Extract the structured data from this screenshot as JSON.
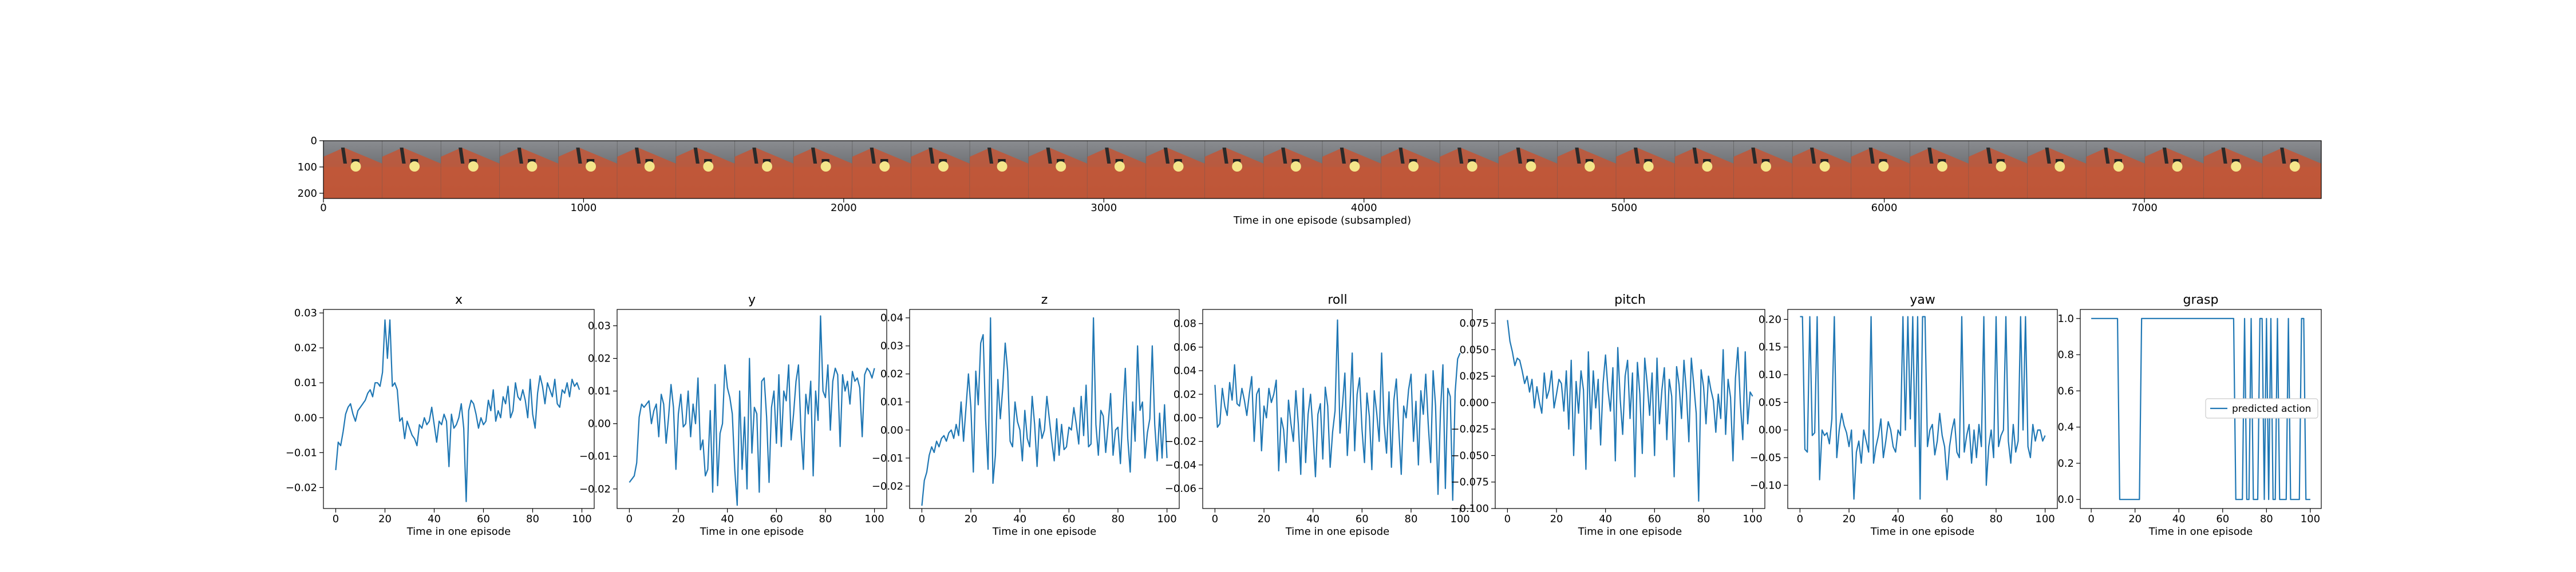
{
  "chart_data": [
    {
      "type": "image",
      "xlabel": "Time in one episode (subsampled)",
      "x_ticks": [
        0,
        1000,
        2000,
        3000,
        4000,
        5000,
        6000,
        7000
      ],
      "y_ticks": [
        0,
        100,
        200
      ],
      "xlim": [
        0,
        7680
      ],
      "ylim": [
        0,
        220
      ],
      "frame_count": 34
    },
    {
      "type": "line",
      "title": "x",
      "xlabel": "Time in one episode",
      "x_ticks": [
        0,
        20,
        40,
        60,
        80,
        100
      ],
      "y_ticks": [
        -0.02,
        -0.01,
        0.0,
        0.01,
        0.02,
        0.03
      ],
      "ylim": [
        -0.026,
        0.031
      ],
      "values": [
        -0.015,
        -0.007,
        -0.008,
        -0.004,
        0.001,
        0.003,
        0.004,
        0.001,
        -0.001,
        0.002,
        0.003,
        0.004,
        0.005,
        0.007,
        0.008,
        0.006,
        0.01,
        0.01,
        0.009,
        0.013,
        0.028,
        0.017,
        0.028,
        0.009,
        0.01,
        0.008,
        -0.001,
        0.0,
        -0.006,
        -0.001,
        -0.003,
        -0.005,
        -0.006,
        -0.008,
        -0.002,
        -0.003,
        0.0,
        -0.002,
        -0.001,
        0.003,
        -0.002,
        -0.007,
        -0.001,
        -0.002,
        0.001,
        -0.001,
        -0.014,
        0.001,
        -0.003,
        -0.002,
        0.0,
        0.004,
        -0.003,
        -0.024,
        0.002,
        0.005,
        0.004,
        0.001,
        -0.003,
        0.0,
        -0.002,
        -0.001,
        0.005,
        0.002,
        0.008,
        -0.001,
        0.002,
        0.0,
        0.006,
        0.004,
        0.009,
        0.0,
        0.002,
        0.01,
        0.006,
        0.005,
        0.008,
        0.005,
        0.0,
        0.011,
        0.001,
        -0.003,
        0.007,
        0.012,
        0.009,
        0.004,
        0.01,
        0.008,
        0.006,
        0.011,
        0.004,
        0.003,
        0.008,
        0.007,
        0.01,
        0.006,
        0.011,
        0.009,
        0.01,
        0.008
      ]
    },
    {
      "type": "line",
      "title": "y",
      "xlabel": "Time in one episode",
      "x_ticks": [
        0,
        20,
        40,
        60,
        80,
        100
      ],
      "y_ticks": [
        -0.02,
        -0.01,
        0.0,
        0.01,
        0.02,
        0.03
      ],
      "ylim": [
        -0.026,
        0.035
      ],
      "values": [
        -0.018,
        -0.017,
        -0.016,
        -0.012,
        0.002,
        0.006,
        0.005,
        0.006,
        0.007,
        0.0,
        0.004,
        0.006,
        -0.004,
        0.009,
        0.006,
        -0.006,
        0.002,
        0.012,
        0.005,
        -0.014,
        0.003,
        0.009,
        -0.001,
        0.0,
        0.01,
        -0.004,
        0.006,
        0.0,
        0.014,
        -0.008,
        -0.005,
        -0.016,
        -0.014,
        0.004,
        -0.021,
        0.012,
        -0.019,
        -0.003,
        0.0,
        0.018,
        0.011,
        0.008,
        0.003,
        -0.014,
        -0.025,
        0.01,
        -0.014,
        0.002,
        -0.02,
        0.02,
        -0.009,
        0.005,
        0.003,
        -0.021,
        0.013,
        0.014,
        0.002,
        -0.018,
        0.005,
        0.01,
        -0.006,
        0.015,
        -0.007,
        0.01,
        0.007,
        0.018,
        -0.005,
        0.003,
        0.013,
        0.018,
        -0.002,
        -0.014,
        0.009,
        0.003,
        0.013,
        -0.016,
        0.01,
        0.001,
        0.033,
        0.01,
        0.008,
        0.018,
        -0.002,
        0.013,
        0.017,
        0.015,
        -0.007,
        0.015,
        0.01,
        0.013,
        0.006,
        0.016,
        0.013,
        0.014,
        0.011,
        -0.004,
        0.015,
        0.017,
        0.016,
        0.014,
        0.017
      ]
    },
    {
      "type": "line",
      "title": "z",
      "xlabel": "Time in one episode",
      "x_ticks": [
        0,
        20,
        40,
        60,
        80,
        100
      ],
      "y_ticks": [
        -0.02,
        -0.01,
        0.0,
        0.01,
        0.02,
        0.03,
        0.04
      ],
      "ylim": [
        -0.028,
        0.043
      ],
      "values": [
        -0.027,
        -0.018,
        -0.015,
        -0.009,
        -0.006,
        -0.008,
        -0.004,
        -0.006,
        -0.003,
        -0.002,
        -0.004,
        -0.001,
        0.0,
        -0.003,
        0.002,
        -0.002,
        0.01,
        -0.004,
        0.008,
        0.02,
        0.008,
        -0.015,
        0.021,
        0.009,
        0.031,
        0.034,
        0.004,
        -0.014,
        0.04,
        -0.019,
        -0.009,
        0.018,
        0.004,
        0.015,
        0.031,
        0.021,
        -0.004,
        -0.006,
        0.01,
        0.003,
        0.0,
        -0.011,
        0.007,
        -0.003,
        -0.006,
        0.012,
        0.002,
        -0.013,
        0.004,
        -0.003,
        0.0,
        0.012,
        0.004,
        -0.004,
        -0.011,
        0.004,
        -0.009,
        0.002,
        -0.007,
        -0.006,
        0.001,
        0.0,
        0.008,
        0.002,
        -0.005,
        0.012,
        -0.002,
        0.016,
        -0.006,
        -0.005,
        0.04,
        0.002,
        -0.009,
        0.007,
        0.005,
        -0.008,
        0.002,
        0.013,
        -0.009,
        0.0,
        0.001,
        -0.012,
        0.006,
        0.022,
        -0.003,
        -0.015,
        0.01,
        -0.004,
        0.03,
        0.007,
        0.01,
        -0.01,
        -0.001,
        0.004,
        0.03,
        0.002,
        -0.011,
        0.006,
        -0.01,
        0.009,
        -0.01
      ]
    },
    {
      "type": "line",
      "title": "roll",
      "xlabel": "Time in one episode",
      "x_ticks": [
        0,
        20,
        40,
        60,
        80,
        100
      ],
      "y_ticks": [
        -0.06,
        -0.04,
        -0.02,
        0.0,
        0.02,
        0.04,
        0.06,
        0.08
      ],
      "ylim": [
        -0.077,
        0.092
      ],
      "values": [
        0.028,
        -0.008,
        -0.005,
        0.025,
        0.01,
        0.002,
        0.03,
        0.015,
        0.045,
        0.012,
        0.01,
        0.025,
        0.015,
        0.002,
        0.02,
        0.035,
        -0.02,
        0.02,
        0.025,
        -0.028,
        0.01,
        0.0,
        0.025,
        0.013,
        0.02,
        0.032,
        -0.045,
        0.0,
        -0.01,
        -0.038,
        0.015,
        -0.005,
        -0.02,
        0.023,
        -0.005,
        -0.048,
        0.025,
        -0.038,
        0.003,
        0.02,
        -0.012,
        -0.05,
        0.003,
        0.012,
        -0.035,
        0.026,
        0.01,
        -0.042,
        -0.012,
        0.006,
        0.083,
        -0.013,
        0.01,
        0.038,
        -0.032,
        0.005,
        0.055,
        -0.028,
        0.02,
        0.034,
        -0.01,
        -0.038,
        0.021,
        0.001,
        -0.044,
        0.023,
        0.004,
        -0.02,
        0.055,
        -0.005,
        -0.03,
        0.022,
        -0.042,
        0.015,
        0.033,
        -0.01,
        -0.048,
        0.01,
        0.0,
        0.024,
        0.037,
        -0.02,
        0.014,
        -0.04,
        0.023,
        0.003,
        0.037,
        -0.005,
        -0.038,
        0.04,
        0.01,
        -0.065,
        0.005,
        0.045,
        -0.06,
        0.025,
        0.018,
        -0.07,
        0.022,
        0.05,
        0.055
      ]
    },
    {
      "type": "line",
      "title": "pitch",
      "xlabel": "Time in one episode",
      "x_ticks": [
        0,
        20,
        40,
        60,
        80,
        100
      ],
      "y_ticks": [
        -0.1,
        -0.075,
        -0.05,
        -0.025,
        0.0,
        0.025,
        0.05,
        0.075
      ],
      "ylim": [
        -0.1,
        0.088
      ],
      "values": [
        0.078,
        0.058,
        0.048,
        0.035,
        0.042,
        0.04,
        0.03,
        0.018,
        0.025,
        0.01,
        0.022,
        -0.005,
        0.015,
        0.001,
        -0.01,
        0.028,
        0.004,
        0.012,
        0.03,
        -0.005,
        0.008,
        0.022,
        0.018,
        -0.008,
        0.03,
        -0.025,
        0.04,
        -0.05,
        0.02,
        -0.01,
        0.03,
        0.012,
        -0.063,
        0.048,
        -0.025,
        0.03,
        -0.005,
        0.022,
        -0.04,
        0.018,
        0.045,
        0.012,
        -0.008,
        0.033,
        -0.055,
        0.052,
        0.003,
        -0.03,
        0.025,
        0.04,
        -0.015,
        0.028,
        -0.07,
        0.038,
        0.008,
        -0.048,
        0.042,
        0.018,
        -0.012,
        0.028,
        -0.05,
        0.042,
        -0.02,
        0.012,
        0.033,
        -0.035,
        0.022,
        0.006,
        -0.07,
        0.034,
        0.017,
        -0.015,
        0.04,
        0.01,
        -0.037,
        0.042,
        0.017,
        -0.01,
        -0.093,
        0.031,
        0.015,
        -0.02,
        0.025,
        0.012,
        0.002,
        -0.028,
        0.008,
        -0.015,
        0.05,
        -0.03,
        0.022,
        0.005,
        -0.055,
        0.023,
        0.052,
        0.0,
        -0.035,
        0.048,
        -0.02,
        0.01,
        0.006
      ]
    },
    {
      "type": "line",
      "title": "yaw",
      "xlabel": "Time in one episode",
      "x_ticks": [
        0,
        20,
        40,
        60,
        80,
        100
      ],
      "y_ticks": [
        -0.1,
        -0.05,
        0.0,
        0.05,
        0.1,
        0.15,
        0.2
      ],
      "ylim": [
        -0.142,
        0.218
      ],
      "values": [
        0.205,
        0.205,
        -0.035,
        -0.04,
        0.205,
        -0.01,
        -0.005,
        0.205,
        -0.09,
        0.0,
        -0.01,
        -0.005,
        -0.025,
        0.02,
        0.205,
        -0.05,
        0.0,
        0.03,
        0.008,
        -0.005,
        -0.03,
        0.0,
        -0.125,
        -0.04,
        -0.02,
        -0.06,
        0.0,
        -0.02,
        -0.04,
        0.205,
        -0.06,
        -0.03,
        -0.01,
        0.02,
        -0.05,
        -0.02,
        0.015,
        0.0,
        -0.03,
        -0.04,
        0.0,
        -0.01,
        0.205,
        0.0,
        0.205,
        0.02,
        0.205,
        -0.03,
        0.205,
        -0.125,
        0.205,
        0.205,
        -0.03,
        0.0,
        0.01,
        -0.045,
        -0.02,
        0.03,
        -0.01,
        -0.03,
        -0.09,
        -0.03,
        0.0,
        0.02,
        -0.04,
        -0.05,
        0.205,
        -0.04,
        -0.01,
        0.01,
        -0.06,
        0.0,
        -0.05,
        0.01,
        -0.03,
        0.205,
        -0.1,
        -0.03,
        0.0,
        -0.05,
        0.205,
        -0.03,
        -0.01,
        0.0,
        0.205,
        -0.02,
        -0.06,
        0.01,
        -0.04,
        -0.02,
        0.205,
        0.0,
        0.205,
        -0.03,
        -0.05,
        0.01,
        -0.02,
        0.0,
        0.0,
        -0.02,
        -0.01
      ]
    },
    {
      "type": "line",
      "title": "grasp",
      "xlabel": "Time in one episode",
      "x_ticks": [
        0,
        20,
        40,
        60,
        80,
        100
      ],
      "y_ticks": [
        0.0,
        0.2,
        0.4,
        0.6,
        0.8,
        1.0
      ],
      "ylim": [
        -0.05,
        1.05
      ],
      "legend": "predicted action",
      "values": [
        1,
        1,
        1,
        1,
        1,
        1,
        1,
        1,
        1,
        1,
        1,
        1,
        1,
        0,
        0,
        0,
        0,
        0,
        0,
        0,
        0,
        0,
        0,
        1,
        1,
        1,
        1,
        1,
        1,
        1,
        1,
        1,
        1,
        1,
        1,
        1,
        1,
        1,
        1,
        1,
        1,
        1,
        1,
        1,
        1,
        1,
        1,
        1,
        1,
        1,
        1,
        1,
        1,
        1,
        1,
        1,
        1,
        1,
        1,
        1,
        1,
        1,
        1,
        1,
        1,
        1,
        0,
        0,
        0,
        0,
        1,
        0,
        0,
        1,
        0,
        0,
        0,
        1,
        1,
        0,
        1,
        0,
        1,
        0,
        0,
        1,
        0,
        0,
        0,
        0,
        1,
        0,
        0,
        0,
        0,
        0,
        1,
        1,
        0,
        0,
        0
      ]
    }
  ]
}
